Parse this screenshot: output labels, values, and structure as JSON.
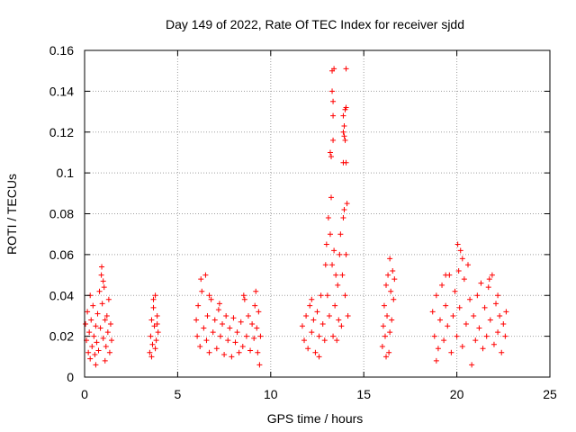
{
  "chart_data": {
    "type": "scatter",
    "title": "Day 149 of 2022, Rate Of TEC Index for receiver sjdd",
    "xlabel": "GPS time / hours",
    "ylabel": "ROTI / TECUs",
    "xlim": [
      0,
      25
    ],
    "ylim": [
      0,
      0.16
    ],
    "xticks": [
      0,
      5,
      10,
      15,
      20,
      25
    ],
    "xtick_labels": [
      "0",
      "5",
      "10",
      "15",
      "20",
      "25"
    ],
    "yticks": [
      0,
      0.02,
      0.04,
      0.06,
      0.08,
      0.1,
      0.12,
      0.14,
      0.16
    ],
    "ytick_labels": [
      "0",
      "0.02",
      "0.04",
      "0.06",
      "0.08",
      "0.1",
      "0.12",
      "0.14",
      "0.16"
    ],
    "grid": true,
    "marker": "+",
    "marker_color": "#ff0000",
    "series": [
      {
        "name": "ROTI",
        "points": [
          [
            0.05,
            0.026
          ],
          [
            0.1,
            0.018
          ],
          [
            0.15,
            0.032
          ],
          [
            0.2,
            0.012
          ],
          [
            0.25,
            0.022
          ],
          [
            0.3,
            0.009
          ],
          [
            0.35,
            0.028
          ],
          [
            0.4,
            0.015
          ],
          [
            0.45,
            0.035
          ],
          [
            0.5,
            0.02
          ],
          [
            0.55,
            0.011
          ],
          [
            0.6,
            0.025
          ],
          [
            0.65,
            0.017
          ],
          [
            0.7,
            0.031
          ],
          [
            0.75,
            0.013
          ],
          [
            0.8,
            0.042
          ],
          [
            0.85,
            0.024
          ],
          [
            0.9,
            0.05
          ],
          [
            0.92,
            0.054
          ],
          [
            0.95,
            0.036
          ],
          [
            1.0,
            0.019
          ],
          [
            1.05,
            0.044
          ],
          [
            1.1,
            0.028
          ],
          [
            1.15,
            0.015
          ],
          [
            1.2,
            0.03
          ],
          [
            1.25,
            0.022
          ],
          [
            1.3,
            0.038
          ],
          [
            1.35,
            0.012
          ],
          [
            1.4,
            0.026
          ],
          [
            1.45,
            0.018
          ],
          [
            0.3,
            0.04
          ],
          [
            0.6,
            0.006
          ],
          [
            1.0,
            0.047
          ],
          [
            1.1,
            0.008
          ],
          [
            3.5,
            0.012
          ],
          [
            3.55,
            0.02
          ],
          [
            3.6,
            0.028
          ],
          [
            3.65,
            0.016
          ],
          [
            3.7,
            0.034
          ],
          [
            3.75,
            0.025
          ],
          [
            3.8,
            0.04
          ],
          [
            3.85,
            0.018
          ],
          [
            3.9,
            0.03
          ],
          [
            3.95,
            0.022
          ],
          [
            3.6,
            0.01
          ],
          [
            3.7,
            0.038
          ],
          [
            3.8,
            0.014
          ],
          [
            3.9,
            0.026
          ],
          [
            6.0,
            0.028
          ],
          [
            6.05,
            0.02
          ],
          [
            6.1,
            0.035
          ],
          [
            6.2,
            0.015
          ],
          [
            6.3,
            0.042
          ],
          [
            6.4,
            0.024
          ],
          [
            6.5,
            0.05
          ],
          [
            6.55,
            0.018
          ],
          [
            6.6,
            0.03
          ],
          [
            6.7,
            0.012
          ],
          [
            6.8,
            0.038
          ],
          [
            6.9,
            0.022
          ],
          [
            7.0,
            0.028
          ],
          [
            7.1,
            0.014
          ],
          [
            7.2,
            0.033
          ],
          [
            7.3,
            0.02
          ],
          [
            7.4,
            0.026
          ],
          [
            7.5,
            0.011
          ],
          [
            7.6,
            0.03
          ],
          [
            7.7,
            0.018
          ],
          [
            7.8,
            0.024
          ],
          [
            7.9,
            0.01
          ],
          [
            8.0,
            0.029
          ],
          [
            8.1,
            0.017
          ],
          [
            8.2,
            0.022
          ],
          [
            8.3,
            0.012
          ],
          [
            8.4,
            0.027
          ],
          [
            8.5,
            0.015
          ],
          [
            8.6,
            0.038
          ],
          [
            8.7,
            0.02
          ],
          [
            8.8,
            0.03
          ],
          [
            8.9,
            0.013
          ],
          [
            9.0,
            0.026
          ],
          [
            9.1,
            0.019
          ],
          [
            9.2,
            0.042
          ],
          [
            9.25,
            0.024
          ],
          [
            9.3,
            0.012
          ],
          [
            9.35,
            0.032
          ],
          [
            9.4,
            0.006
          ],
          [
            9.45,
            0.02
          ],
          [
            6.25,
            0.048
          ],
          [
            6.7,
            0.04
          ],
          [
            7.25,
            0.036
          ],
          [
            8.55,
            0.04
          ],
          [
            9.15,
            0.035
          ],
          [
            11.7,
            0.025
          ],
          [
            11.8,
            0.018
          ],
          [
            11.9,
            0.03
          ],
          [
            12.0,
            0.014
          ],
          [
            12.1,
            0.035
          ],
          [
            12.2,
            0.022
          ],
          [
            12.3,
            0.028
          ],
          [
            12.4,
            0.012
          ],
          [
            12.5,
            0.032
          ],
          [
            12.6,
            0.02
          ],
          [
            12.7,
            0.04
          ],
          [
            12.8,
            0.026
          ],
          [
            12.9,
            0.018
          ],
          [
            12.95,
            0.055
          ],
          [
            13.0,
            0.065
          ],
          [
            13.05,
            0.04
          ],
          [
            13.1,
            0.078
          ],
          [
            13.15,
            0.03
          ],
          [
            13.2,
            0.07
          ],
          [
            13.25,
            0.088
          ],
          [
            13.3,
            0.055
          ],
          [
            13.35,
            0.02
          ],
          [
            13.4,
            0.062
          ],
          [
            13.45,
            0.035
          ],
          [
            13.5,
            0.05
          ],
          [
            13.55,
            0.018
          ],
          [
            13.6,
            0.045
          ],
          [
            13.65,
            0.028
          ],
          [
            13.7,
            0.06
          ],
          [
            13.75,
            0.07
          ],
          [
            13.8,
            0.025
          ],
          [
            13.85,
            0.05
          ],
          [
            13.9,
            0.078
          ],
          [
            13.95,
            0.082
          ],
          [
            14.0,
            0.04
          ],
          [
            14.05,
            0.06
          ],
          [
            14.1,
            0.085
          ],
          [
            14.15,
            0.03
          ],
          [
            12.2,
            0.038
          ],
          [
            12.6,
            0.01
          ],
          [
            13.2,
            0.11
          ],
          [
            13.25,
            0.108
          ],
          [
            13.3,
            0.14
          ],
          [
            13.3,
            0.15
          ],
          [
            13.35,
            0.135
          ],
          [
            13.35,
            0.128
          ],
          [
            13.35,
            0.116
          ],
          [
            13.9,
            0.12
          ],
          [
            13.9,
            0.128
          ],
          [
            13.95,
            0.123
          ],
          [
            14.0,
            0.131
          ],
          [
            14.0,
            0.116
          ],
          [
            14.05,
            0.105
          ],
          [
            14.05,
            0.151
          ],
          [
            14.05,
            0.132
          ],
          [
            13.4,
            0.151
          ],
          [
            13.95,
            0.118
          ],
          [
            13.9,
            0.105
          ],
          [
            16.0,
            0.015
          ],
          [
            16.05,
            0.025
          ],
          [
            16.1,
            0.035
          ],
          [
            16.15,
            0.02
          ],
          [
            16.2,
            0.045
          ],
          [
            16.25,
            0.03
          ],
          [
            16.3,
            0.05
          ],
          [
            16.35,
            0.012
          ],
          [
            16.4,
            0.058
          ],
          [
            16.45,
            0.042
          ],
          [
            16.5,
            0.028
          ],
          [
            16.55,
            0.052
          ],
          [
            16.6,
            0.038
          ],
          [
            16.65,
            0.048
          ],
          [
            16.2,
            0.01
          ],
          [
            16.4,
            0.022
          ],
          [
            18.7,
            0.032
          ],
          [
            18.8,
            0.02
          ],
          [
            18.9,
            0.04
          ],
          [
            19.0,
            0.014
          ],
          [
            19.1,
            0.028
          ],
          [
            19.2,
            0.045
          ],
          [
            19.3,
            0.018
          ],
          [
            19.4,
            0.035
          ],
          [
            19.5,
            0.025
          ],
          [
            19.6,
            0.05
          ],
          [
            19.7,
            0.012
          ],
          [
            19.8,
            0.03
          ],
          [
            19.9,
            0.042
          ],
          [
            20.0,
            0.02
          ],
          [
            20.05,
            0.065
          ],
          [
            20.1,
            0.052
          ],
          [
            20.15,
            0.034
          ],
          [
            20.2,
            0.062
          ],
          [
            20.3,
            0.015
          ],
          [
            20.4,
            0.048
          ],
          [
            20.5,
            0.026
          ],
          [
            20.6,
            0.055
          ],
          [
            20.7,
            0.038
          ],
          [
            20.8,
            0.006
          ],
          [
            20.9,
            0.03
          ],
          [
            21.0,
            0.018
          ],
          [
            21.1,
            0.04
          ],
          [
            21.2,
            0.024
          ],
          [
            21.3,
            0.046
          ],
          [
            21.4,
            0.014
          ],
          [
            21.5,
            0.034
          ],
          [
            21.6,
            0.02
          ],
          [
            21.7,
            0.044
          ],
          [
            21.8,
            0.028
          ],
          [
            21.9,
            0.05
          ],
          [
            22.0,
            0.016
          ],
          [
            22.1,
            0.036
          ],
          [
            22.2,
            0.022
          ],
          [
            22.3,
            0.03
          ],
          [
            22.4,
            0.012
          ],
          [
            22.5,
            0.026
          ],
          [
            22.6,
            0.02
          ],
          [
            22.65,
            0.032
          ],
          [
            18.9,
            0.008
          ],
          [
            19.4,
            0.05
          ],
          [
            20.3,
            0.058
          ],
          [
            21.75,
            0.048
          ],
          [
            22.2,
            0.04
          ]
        ]
      }
    ]
  }
}
